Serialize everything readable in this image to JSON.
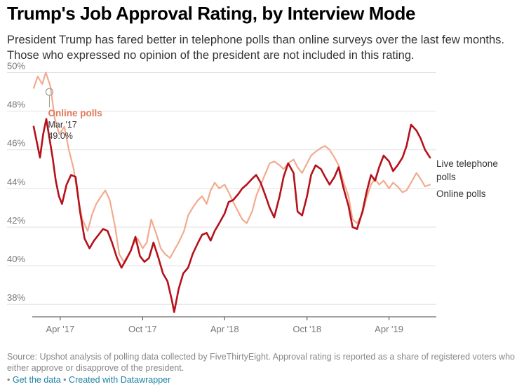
{
  "header": {
    "title": "Trump's Job Approval Rating, by Interview Mode",
    "subtitle": "President Trump has fared better in telephone polls than online surveys over the last few months. Those who expressed no opinion of the president are not included in this rating."
  },
  "footer": {
    "source": "Source: Upshot analysis of polling data collected by FiveThirtyEight. Approval rating is reported as a share of registered voters who either approve or disapprove of the president.",
    "link_prefix": "•",
    "get_data": "Get the data",
    "created_with": "Created with Datawrapper"
  },
  "colors": {
    "online": "#f2ab8f",
    "phone": "#b5111a",
    "online_label": "#e07a5b",
    "grid": "#e2e2e2",
    "axis": "#444444"
  },
  "chart_data": {
    "type": "line",
    "title": "Trump's Job Approval Rating, by Interview Mode",
    "xlabel": "",
    "ylabel": "",
    "ylim": [
      37.5,
      50.2
    ],
    "yticks": [
      38,
      40,
      42,
      44,
      46,
      48,
      50
    ],
    "ytick_labels": [
      "38%",
      "40%",
      "42%",
      "44%",
      "46%",
      "48%",
      "50%"
    ],
    "xlim": [
      "2017-02-01",
      "2019-07-15"
    ],
    "xticks": [
      {
        "date": "2017-04-01",
        "label": "Apr '17"
      },
      {
        "date": "2017-10-01",
        "label": "Oct '17"
      },
      {
        "date": "2018-04-01",
        "label": "Apr '18"
      },
      {
        "date": "2018-10-01",
        "label": "Oct '18"
      },
      {
        "date": "2019-04-01",
        "label": "Apr '19"
      }
    ],
    "grid": true,
    "series": [
      {
        "name": "Online polls",
        "color": "#f2ab8f",
        "points": [
          [
            "2017-02-01",
            49.2
          ],
          [
            "2017-02-10",
            49.8
          ],
          [
            "2017-02-20",
            49.4
          ],
          [
            "2017-02-28",
            50.0
          ],
          [
            "2017-03-10",
            49.3
          ],
          [
            "2017-03-20",
            47.6
          ],
          [
            "2017-03-30",
            46.8
          ],
          [
            "2017-04-10",
            47.2
          ],
          [
            "2017-04-20",
            46.0
          ],
          [
            "2017-05-01",
            45.0
          ],
          [
            "2017-05-10",
            43.6
          ],
          [
            "2017-05-20",
            42.4
          ],
          [
            "2017-06-01",
            41.8
          ],
          [
            "2017-06-10",
            42.6
          ],
          [
            "2017-06-20",
            43.2
          ],
          [
            "2017-07-01",
            43.6
          ],
          [
            "2017-07-10",
            43.9
          ],
          [
            "2017-07-20",
            43.4
          ],
          [
            "2017-08-01",
            42.0
          ],
          [
            "2017-08-10",
            40.6
          ],
          [
            "2017-08-20",
            40.2
          ],
          [
            "2017-09-01",
            40.6
          ],
          [
            "2017-09-10",
            41.1
          ],
          [
            "2017-09-20",
            41.4
          ],
          [
            "2017-10-01",
            40.9
          ],
          [
            "2017-10-10",
            41.2
          ],
          [
            "2017-10-20",
            42.4
          ],
          [
            "2017-11-01",
            41.6
          ],
          [
            "2017-11-10",
            40.9
          ],
          [
            "2017-11-20",
            40.6
          ],
          [
            "2017-12-01",
            40.4
          ],
          [
            "2017-12-10",
            40.8
          ],
          [
            "2017-12-20",
            41.2
          ],
          [
            "2018-01-01",
            41.8
          ],
          [
            "2018-01-10",
            42.6
          ],
          [
            "2018-01-20",
            43.0
          ],
          [
            "2018-02-01",
            43.4
          ],
          [
            "2018-02-10",
            43.6
          ],
          [
            "2018-02-20",
            43.2
          ],
          [
            "2018-03-01",
            43.9
          ],
          [
            "2018-03-10",
            44.3
          ],
          [
            "2018-03-20",
            44.0
          ],
          [
            "2018-04-01",
            44.2
          ],
          [
            "2018-04-10",
            43.8
          ],
          [
            "2018-04-20",
            43.3
          ],
          [
            "2018-05-01",
            42.8
          ],
          [
            "2018-05-10",
            42.4
          ],
          [
            "2018-05-20",
            42.2
          ],
          [
            "2018-06-01",
            42.8
          ],
          [
            "2018-06-10",
            43.6
          ],
          [
            "2018-06-20",
            44.2
          ],
          [
            "2018-07-01",
            44.8
          ],
          [
            "2018-07-10",
            45.3
          ],
          [
            "2018-07-20",
            45.4
          ],
          [
            "2018-08-01",
            45.2
          ],
          [
            "2018-08-10",
            45.0
          ],
          [
            "2018-08-20",
            45.3
          ],
          [
            "2018-09-01",
            45.5
          ],
          [
            "2018-09-10",
            45.1
          ],
          [
            "2018-09-20",
            44.8
          ],
          [
            "2018-10-01",
            45.3
          ],
          [
            "2018-10-10",
            45.7
          ],
          [
            "2018-10-20",
            45.9
          ],
          [
            "2018-11-01",
            46.1
          ],
          [
            "2018-11-10",
            46.2
          ],
          [
            "2018-11-20",
            46.0
          ],
          [
            "2018-12-01",
            45.6
          ],
          [
            "2018-12-10",
            45.2
          ],
          [
            "2018-12-20",
            44.4
          ],
          [
            "2019-01-01",
            43.6
          ],
          [
            "2019-01-10",
            42.4
          ],
          [
            "2019-01-20",
            42.2
          ],
          [
            "2019-02-01",
            42.7
          ],
          [
            "2019-02-10",
            43.5
          ],
          [
            "2019-02-20",
            44.2
          ],
          [
            "2019-03-01",
            44.5
          ],
          [
            "2019-03-10",
            44.2
          ],
          [
            "2019-03-20",
            44.4
          ],
          [
            "2019-04-01",
            44.0
          ],
          [
            "2019-04-10",
            44.3
          ],
          [
            "2019-04-20",
            44.1
          ],
          [
            "2019-05-01",
            43.8
          ],
          [
            "2019-05-10",
            43.9
          ],
          [
            "2019-05-20",
            44.3
          ],
          [
            "2019-06-01",
            44.8
          ],
          [
            "2019-06-10",
            44.5
          ],
          [
            "2019-06-20",
            44.1
          ],
          [
            "2019-07-01",
            44.2
          ]
        ]
      },
      {
        "name": "Live telephone polls",
        "color": "#b5111a",
        "points": [
          [
            "2017-02-01",
            47.2
          ],
          [
            "2017-02-08",
            46.4
          ],
          [
            "2017-02-15",
            45.6
          ],
          [
            "2017-02-22",
            46.8
          ],
          [
            "2017-03-01",
            47.6
          ],
          [
            "2017-03-08",
            46.6
          ],
          [
            "2017-03-15",
            45.6
          ],
          [
            "2017-03-22",
            44.4
          ],
          [
            "2017-03-29",
            43.6
          ],
          [
            "2017-04-05",
            43.2
          ],
          [
            "2017-04-15",
            44.2
          ],
          [
            "2017-04-25",
            44.7
          ],
          [
            "2017-05-05",
            44.6
          ],
          [
            "2017-05-15",
            42.8
          ],
          [
            "2017-05-25",
            41.4
          ],
          [
            "2017-06-05",
            40.9
          ],
          [
            "2017-06-15",
            41.3
          ],
          [
            "2017-06-25",
            41.6
          ],
          [
            "2017-07-05",
            41.9
          ],
          [
            "2017-07-15",
            41.8
          ],
          [
            "2017-07-25",
            41.2
          ],
          [
            "2017-08-05",
            40.4
          ],
          [
            "2017-08-15",
            39.9
          ],
          [
            "2017-08-25",
            40.3
          ],
          [
            "2017-09-05",
            40.8
          ],
          [
            "2017-09-15",
            41.5
          ],
          [
            "2017-09-25",
            40.5
          ],
          [
            "2017-10-05",
            40.2
          ],
          [
            "2017-10-15",
            40.4
          ],
          [
            "2017-10-25",
            41.2
          ],
          [
            "2017-11-05",
            40.4
          ],
          [
            "2017-11-15",
            39.6
          ],
          [
            "2017-11-25",
            39.2
          ],
          [
            "2017-12-05",
            38.2
          ],
          [
            "2017-12-10",
            37.6
          ],
          [
            "2017-12-20",
            38.8
          ],
          [
            "2017-12-30",
            39.6
          ],
          [
            "2018-01-10",
            39.9
          ],
          [
            "2018-01-20",
            40.6
          ],
          [
            "2018-02-01",
            41.2
          ],
          [
            "2018-02-10",
            41.6
          ],
          [
            "2018-02-20",
            41.7
          ],
          [
            "2018-03-01",
            41.3
          ],
          [
            "2018-03-10",
            41.8
          ],
          [
            "2018-03-20",
            42.2
          ],
          [
            "2018-04-01",
            42.7
          ],
          [
            "2018-04-10",
            43.3
          ],
          [
            "2018-04-20",
            43.4
          ],
          [
            "2018-05-01",
            43.7
          ],
          [
            "2018-05-10",
            44.0
          ],
          [
            "2018-05-20",
            44.2
          ],
          [
            "2018-06-01",
            44.5
          ],
          [
            "2018-06-10",
            44.7
          ],
          [
            "2018-06-20",
            44.3
          ],
          [
            "2018-07-01",
            43.6
          ],
          [
            "2018-07-10",
            43.0
          ],
          [
            "2018-07-20",
            42.5
          ],
          [
            "2018-08-01",
            43.6
          ],
          [
            "2018-08-10",
            44.6
          ],
          [
            "2018-08-20",
            45.3
          ],
          [
            "2018-09-01",
            44.8
          ],
          [
            "2018-09-10",
            42.8
          ],
          [
            "2018-09-20",
            42.6
          ],
          [
            "2018-10-01",
            43.6
          ],
          [
            "2018-10-10",
            44.7
          ],
          [
            "2018-10-20",
            45.2
          ],
          [
            "2018-11-01",
            45.0
          ],
          [
            "2018-11-10",
            44.6
          ],
          [
            "2018-11-20",
            44.2
          ],
          [
            "2018-12-01",
            44.6
          ],
          [
            "2018-12-10",
            45.1
          ],
          [
            "2018-12-20",
            44.1
          ],
          [
            "2019-01-01",
            43.1
          ],
          [
            "2019-01-10",
            42.0
          ],
          [
            "2019-01-20",
            41.9
          ],
          [
            "2019-02-01",
            42.8
          ],
          [
            "2019-02-10",
            43.8
          ],
          [
            "2019-02-20",
            44.7
          ],
          [
            "2019-03-01",
            44.4
          ],
          [
            "2019-03-10",
            45.1
          ],
          [
            "2019-03-20",
            45.7
          ],
          [
            "2019-04-01",
            45.4
          ],
          [
            "2019-04-10",
            44.9
          ],
          [
            "2019-04-20",
            45.2
          ],
          [
            "2019-05-01",
            45.6
          ],
          [
            "2019-05-10",
            46.2
          ],
          [
            "2019-05-20",
            47.3
          ],
          [
            "2019-06-01",
            47.0
          ],
          [
            "2019-06-10",
            46.6
          ],
          [
            "2019-06-20",
            46.0
          ],
          [
            "2019-07-01",
            45.6
          ]
        ]
      }
    ],
    "annotation": {
      "series": "Online polls",
      "label": "Online polls",
      "date_label": "Mar '17",
      "value_label": "49.0%",
      "date": "2017-03-08",
      "value": 49.0
    },
    "end_labels": {
      "phone": "Live telephone polls",
      "online": "Online polls"
    }
  }
}
